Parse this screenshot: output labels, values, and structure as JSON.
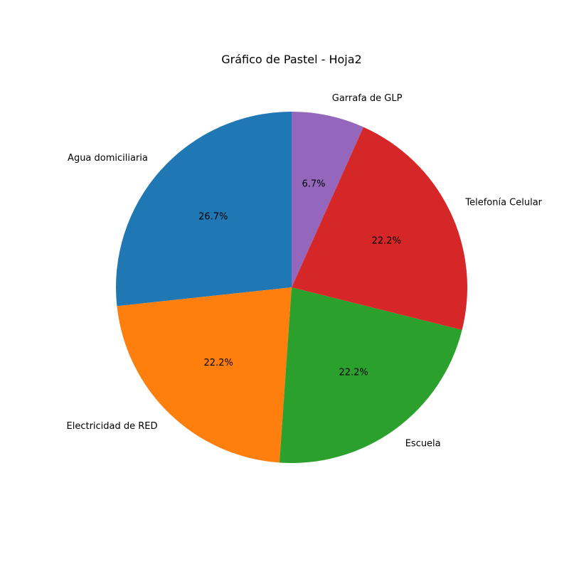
{
  "chart_data": {
    "type": "pie",
    "title": "Gráfico de Pastel - Hoja2",
    "categories": [
      "Agua domiciliaria",
      "Electricidad de RED",
      "Escuela",
      "Telefonía Celular",
      "Garrafa de GLP"
    ],
    "values": [
      26.7,
      22.2,
      22.2,
      22.2,
      6.7
    ],
    "percent_labels": [
      "26.7%",
      "22.2%",
      "22.2%",
      "22.2%",
      "6.7%"
    ],
    "colors": [
      "#1f77b4",
      "#ff7f0e",
      "#2ca02c",
      "#d62728",
      "#9467bd"
    ],
    "start_angle_deg": 90,
    "direction": "counterclockwise",
    "legend": "none"
  }
}
